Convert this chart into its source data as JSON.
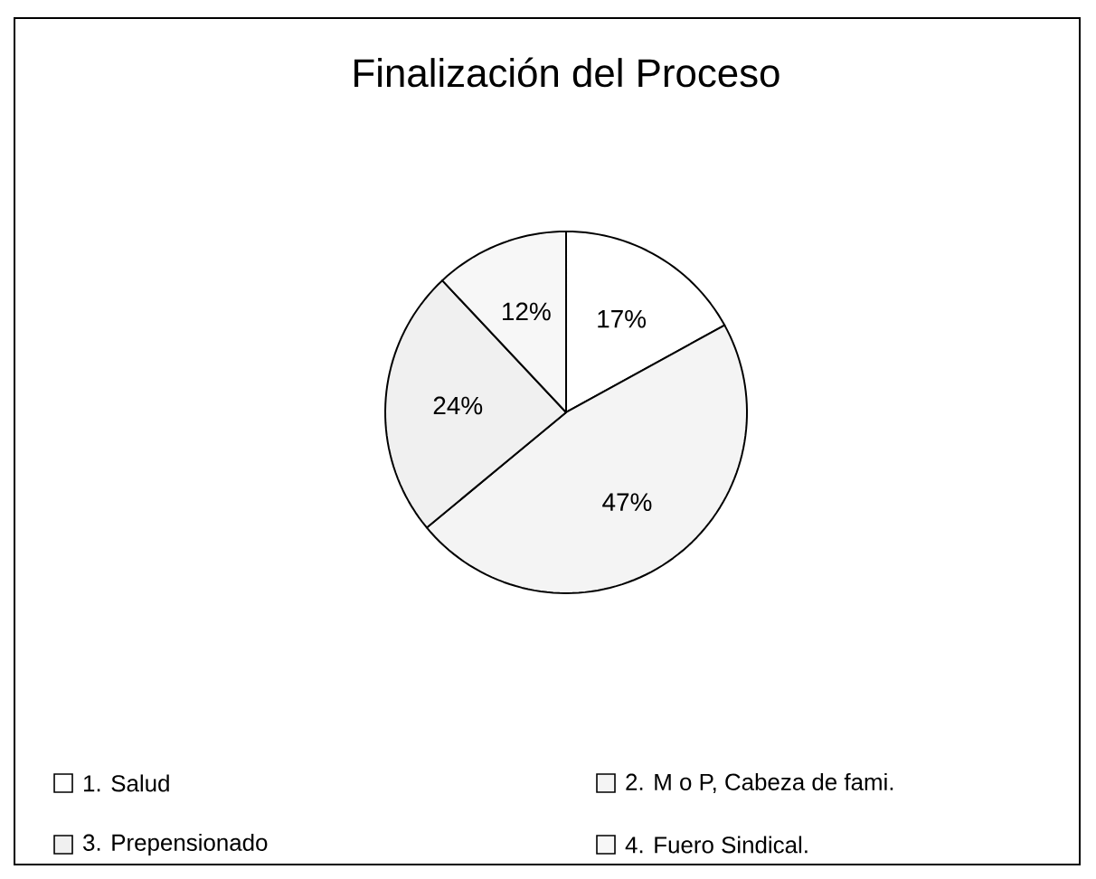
{
  "chart_data": {
    "type": "pie",
    "title": "Finalización del Proceso",
    "categories": [
      "1. Salud",
      "2. M o P, Cabeza de fami.",
      "3. Prepensionado",
      "4. Fuero Sindical."
    ],
    "values": [
      17,
      47,
      24,
      12
    ],
    "value_labels": [
      "17%",
      "47%",
      "24%",
      "12%"
    ],
    "colors": [
      "#ffffff",
      "#f4f4f4",
      "#f0f0f0",
      "#f7f7f7"
    ],
    "legend": "bottom"
  }
}
